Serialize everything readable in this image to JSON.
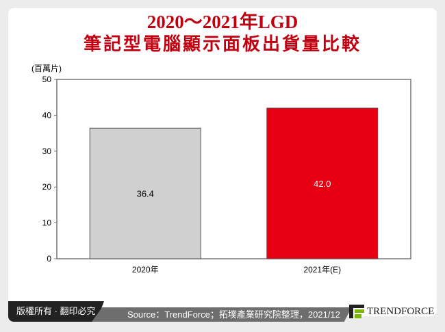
{
  "title_line1": "2020～2021年LGD",
  "title_line2": "筆記型電腦顯示面板出貨量比較",
  "footer": {
    "copyright": "版權所有 · 翻印必究",
    "source": "Source：TrendForce；拓墣產業研究院整理，2021/12",
    "logo": "TrendForce"
  },
  "chart_data": {
    "type": "bar",
    "title": "2020～2021年LGD 筆記型電腦顯示面板出貨量比較",
    "ylabel": "(百萬片)",
    "categories": [
      "2020年",
      "2021年(E)"
    ],
    "values": [
      36.4,
      42.0
    ],
    "data_labels": [
      "36.4",
      "42.0"
    ],
    "colors": [
      "#d0d0d0",
      "#e60012"
    ],
    "ylim": [
      0,
      50
    ],
    "yticks": [
      0,
      10,
      20,
      30,
      40,
      50
    ],
    "grid": false
  }
}
